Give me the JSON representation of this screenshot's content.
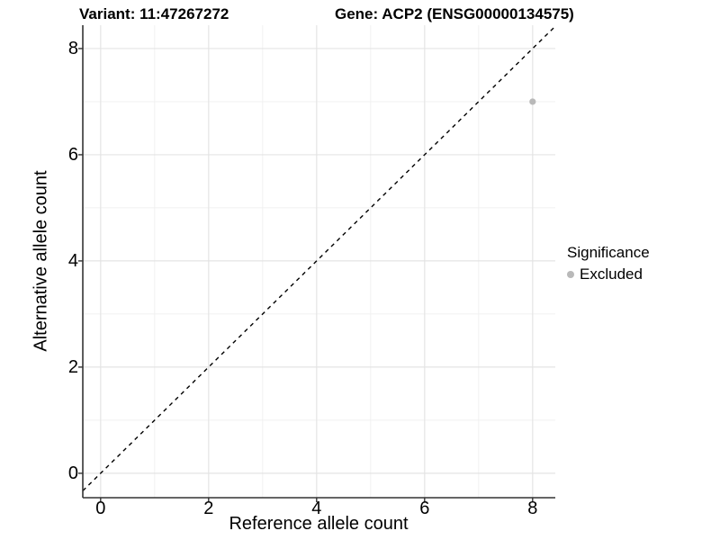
{
  "header": {
    "variant_title": "Variant: 11:47267272",
    "gene_title": "Gene: ACP2 (ENSG00000134575)"
  },
  "chart_data": {
    "type": "scatter",
    "title": "Variant: 11:47267272  /  Gene: ACP2 (ENSG00000134575)",
    "xlabel": "Reference allele count",
    "ylabel": "Alternative allele count",
    "x_ticks": [
      0,
      2,
      4,
      6,
      8
    ],
    "y_ticks": [
      0,
      2,
      4,
      6,
      8
    ],
    "x_minor_ticks": [
      1,
      3,
      5,
      7
    ],
    "y_minor_ticks": [
      1,
      3,
      5,
      7
    ],
    "xlim": [
      -0.33,
      8.42
    ],
    "ylim": [
      -0.46,
      8.44
    ],
    "grid": true,
    "points": [
      {
        "x": 8,
        "y": 7,
        "series": "Excluded"
      }
    ],
    "reference_line": {
      "type": "identity",
      "equation": "y = x",
      "style": "dashed"
    },
    "legend": {
      "title": "Significance",
      "position": "right",
      "entries": [
        {
          "label": "Excluded",
          "marker": "dot"
        }
      ]
    }
  },
  "style": {
    "point_color": "#b9b9b9",
    "grid_major_color": "#e4e4e4",
    "grid_minor_color": "#f1f1f1",
    "axis_color": "#333333",
    "dash_color": "#000000",
    "text_color": "#000000",
    "background_color": "#ffffff"
  }
}
